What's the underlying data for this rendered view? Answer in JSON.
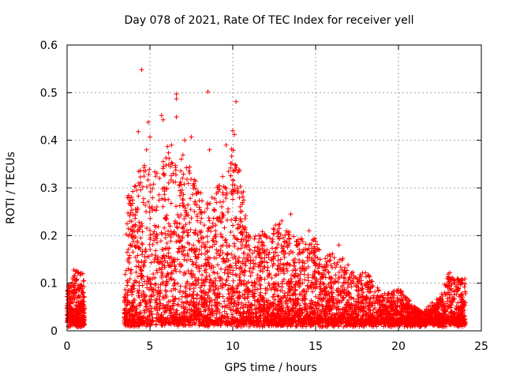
{
  "chart_data": {
    "type": "scatter",
    "title": "Day 078 of 2021, Rate Of TEC Index for receiver yell",
    "xlabel": "GPS time / hours",
    "ylabel": "ROTI / TECUs",
    "xlim": [
      0,
      25
    ],
    "ylim": [
      0,
      0.6
    ],
    "x_ticks": [
      0,
      5,
      10,
      15,
      20,
      25
    ],
    "x_tick_labels": [
      "0",
      "5",
      "10",
      "15",
      "20",
      "25"
    ],
    "y_ticks": [
      0,
      0.1,
      0.2,
      0.3,
      0.4,
      0.5,
      0.6
    ],
    "y_tick_labels": [
      "0",
      "0.1",
      "0.2",
      "0.3",
      "0.4",
      "0.5",
      "0.6"
    ],
    "grid": true,
    "marker": "plus",
    "series_color": "#ff0000",
    "envelope": {
      "note": "approximate upper envelope of the point cloud (hours, ROTI)",
      "x": [
        0,
        0.5,
        1.0,
        1.1,
        3.4,
        3.6,
        4.0,
        4.5,
        5.0,
        5.5,
        6.0,
        6.5,
        7.0,
        7.5,
        8.0,
        8.5,
        9.0,
        9.5,
        10.0,
        10.5,
        11.0,
        11.5,
        12.0,
        12.5,
        13.0,
        13.5,
        14.0,
        14.5,
        15.0,
        15.5,
        16.0,
        16.5,
        17.0,
        17.5,
        18.0,
        18.5,
        19.0,
        19.5,
        20.0,
        20.5,
        21.0,
        21.5,
        22.0,
        22.5,
        23.0,
        23.5,
        24.0
      ],
      "y": [
        0.09,
        0.13,
        0.12,
        0.0,
        0.0,
        0.28,
        0.3,
        0.36,
        0.34,
        0.33,
        0.4,
        0.35,
        0.37,
        0.34,
        0.3,
        0.27,
        0.3,
        0.34,
        0.4,
        0.33,
        0.2,
        0.22,
        0.2,
        0.22,
        0.24,
        0.2,
        0.2,
        0.18,
        0.2,
        0.15,
        0.17,
        0.16,
        0.14,
        0.12,
        0.13,
        0.1,
        0.08,
        0.08,
        0.09,
        0.07,
        0.05,
        0.04,
        0.06,
        0.07,
        0.12,
        0.11,
        0.11
      ]
    },
    "outliers": [
      {
        "x": 4.5,
        "y": 0.548
      },
      {
        "x": 6.6,
        "y": 0.497
      },
      {
        "x": 6.6,
        "y": 0.487
      },
      {
        "x": 8.5,
        "y": 0.502
      },
      {
        "x": 10.2,
        "y": 0.481
      },
      {
        "x": 4.9,
        "y": 0.438
      },
      {
        "x": 6.6,
        "y": 0.449
      },
      {
        "x": 5.7,
        "y": 0.452
      },
      {
        "x": 5.8,
        "y": 0.443
      },
      {
        "x": 4.3,
        "y": 0.418
      },
      {
        "x": 10.0,
        "y": 0.42
      },
      {
        "x": 10.1,
        "y": 0.412
      },
      {
        "x": 5.0,
        "y": 0.407
      },
      {
        "x": 7.5,
        "y": 0.407
      },
      {
        "x": 8.6,
        "y": 0.38
      },
      {
        "x": 7.1,
        "y": 0.4
      },
      {
        "x": 9.6,
        "y": 0.39
      },
      {
        "x": 6.3,
        "y": 0.39
      },
      {
        "x": 4.8,
        "y": 0.38
      },
      {
        "x": 0.4,
        "y": 0.128
      },
      {
        "x": 0.5,
        "y": 0.125
      },
      {
        "x": 0.95,
        "y": 0.12
      },
      {
        "x": 23.1,
        "y": 0.122
      },
      {
        "x": 13.5,
        "y": 0.245
      },
      {
        "x": 14.6,
        "y": 0.21
      },
      {
        "x": 16.4,
        "y": 0.18
      }
    ]
  }
}
